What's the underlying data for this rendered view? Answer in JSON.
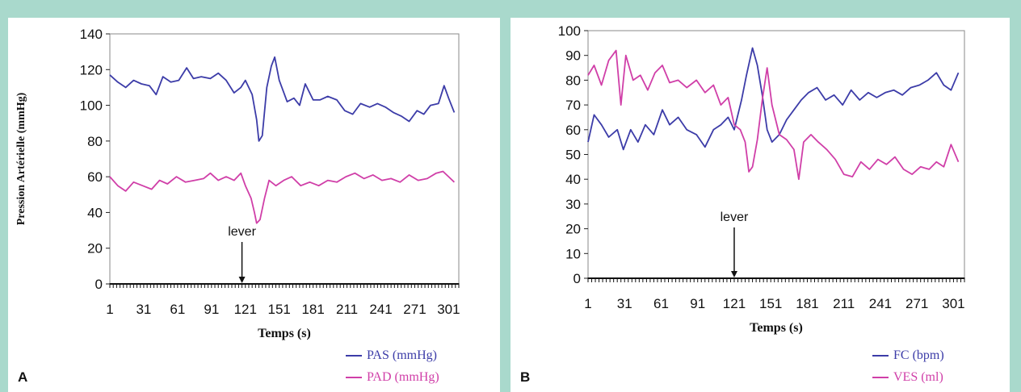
{
  "chart_data": [
    {
      "panel_label": "A",
      "type": "line",
      "xlabel": "Temps (s)",
      "ylabel": "Pression Artérielle (mmHg)",
      "xlim": [
        1,
        310
      ],
      "ylim": [
        0,
        140
      ],
      "x_ticks": [
        1,
        31,
        61,
        91,
        121,
        151,
        181,
        211,
        241,
        271,
        301
      ],
      "y_ticks": [
        0,
        20,
        40,
        60,
        80,
        100,
        120,
        140
      ],
      "grid": false,
      "legend_position": "bottom-right",
      "annotation": {
        "text": "lever",
        "x": 118
      },
      "series": [
        {
          "name": "PAS (mmHg)",
          "color": "#3c3ca8",
          "points": [
            [
              1,
              117
            ],
            [
              8,
              113
            ],
            [
              15,
              110
            ],
            [
              22,
              114
            ],
            [
              29,
              112
            ],
            [
              36,
              111
            ],
            [
              42,
              106
            ],
            [
              48,
              116
            ],
            [
              55,
              113
            ],
            [
              62,
              114
            ],
            [
              69,
              121
            ],
            [
              75,
              115
            ],
            [
              82,
              116
            ],
            [
              90,
              115
            ],
            [
              97,
              118
            ],
            [
              104,
              114
            ],
            [
              111,
              107
            ],
            [
              117,
              110
            ],
            [
              121,
              114
            ],
            [
              127,
              106
            ],
            [
              131,
              92
            ],
            [
              133,
              80
            ],
            [
              136,
              83
            ],
            [
              140,
              110
            ],
            [
              144,
              122
            ],
            [
              147,
              127
            ],
            [
              151,
              114
            ],
            [
              158,
              102
            ],
            [
              164,
              104
            ],
            [
              169,
              100
            ],
            [
              174,
              112
            ],
            [
              181,
              103
            ],
            [
              187,
              103
            ],
            [
              194,
              105
            ],
            [
              202,
              103
            ],
            [
              209,
              97
            ],
            [
              216,
              95
            ],
            [
              223,
              101
            ],
            [
              231,
              99
            ],
            [
              238,
              101
            ],
            [
              245,
              99
            ],
            [
              252,
              96
            ],
            [
              259,
              94
            ],
            [
              266,
              91
            ],
            [
              273,
              97
            ],
            [
              279,
              95
            ],
            [
              285,
              100
            ],
            [
              292,
              101
            ],
            [
              297,
              111
            ],
            [
              301,
              104
            ],
            [
              306,
              96
            ]
          ]
        },
        {
          "name": "PAD (mmHg)",
          "color": "#d03fa8",
          "points": [
            [
              1,
              60
            ],
            [
              8,
              55
            ],
            [
              15,
              52
            ],
            [
              22,
              57
            ],
            [
              30,
              55
            ],
            [
              38,
              53
            ],
            [
              45,
              58
            ],
            [
              52,
              56
            ],
            [
              60,
              60
            ],
            [
              68,
              57
            ],
            [
              76,
              58
            ],
            [
              84,
              59
            ],
            [
              90,
              62
            ],
            [
              97,
              58
            ],
            [
              104,
              60
            ],
            [
              111,
              58
            ],
            [
              117,
              62
            ],
            [
              121,
              55
            ],
            [
              126,
              48
            ],
            [
              129,
              40
            ],
            [
              131,
              34
            ],
            [
              134,
              36
            ],
            [
              138,
              48
            ],
            [
              142,
              58
            ],
            [
              148,
              55
            ],
            [
              155,
              58
            ],
            [
              162,
              60
            ],
            [
              170,
              55
            ],
            [
              178,
              57
            ],
            [
              186,
              55
            ],
            [
              194,
              58
            ],
            [
              202,
              57
            ],
            [
              210,
              60
            ],
            [
              218,
              62
            ],
            [
              226,
              59
            ],
            [
              234,
              61
            ],
            [
              242,
              58
            ],
            [
              250,
              59
            ],
            [
              258,
              57
            ],
            [
              266,
              61
            ],
            [
              274,
              58
            ],
            [
              282,
              59
            ],
            [
              290,
              62
            ],
            [
              296,
              63
            ],
            [
              301,
              60
            ],
            [
              306,
              57
            ]
          ]
        }
      ]
    },
    {
      "panel_label": "B",
      "type": "line",
      "xlabel": "Temps (s)",
      "ylabel": "",
      "xlim": [
        1,
        310
      ],
      "ylim": [
        0,
        100
      ],
      "x_ticks": [
        1,
        31,
        61,
        91,
        121,
        151,
        181,
        211,
        241,
        271,
        301
      ],
      "y_ticks": [
        0,
        10,
        20,
        30,
        40,
        50,
        60,
        70,
        80,
        90,
        100
      ],
      "grid": false,
      "legend_position": "bottom-right",
      "annotation": {
        "text": "lever",
        "x": 121
      },
      "series": [
        {
          "name": "FC (bpm)",
          "color": "#3c3ca8",
          "points": [
            [
              1,
              55
            ],
            [
              6,
              66
            ],
            [
              12,
              62
            ],
            [
              18,
              57
            ],
            [
              25,
              60
            ],
            [
              30,
              52
            ],
            [
              36,
              60
            ],
            [
              42,
              55
            ],
            [
              48,
              62
            ],
            [
              55,
              58
            ],
            [
              62,
              68
            ],
            [
              68,
              62
            ],
            [
              75,
              65
            ],
            [
              82,
              60
            ],
            [
              90,
              58
            ],
            [
              97,
              53
            ],
            [
              104,
              60
            ],
            [
              110,
              62
            ],
            [
              116,
              65
            ],
            [
              121,
              60
            ],
            [
              127,
              72
            ],
            [
              131,
              82
            ],
            [
              136,
              93
            ],
            [
              140,
              86
            ],
            [
              144,
              74
            ],
            [
              148,
              60
            ],
            [
              152,
              55
            ],
            [
              158,
              58
            ],
            [
              164,
              64
            ],
            [
              170,
              68
            ],
            [
              176,
              72
            ],
            [
              182,
              75
            ],
            [
              189,
              77
            ],
            [
              196,
              72
            ],
            [
              203,
              74
            ],
            [
              210,
              70
            ],
            [
              217,
              76
            ],
            [
              224,
              72
            ],
            [
              231,
              75
            ],
            [
              238,
              73
            ],
            [
              245,
              75
            ],
            [
              252,
              76
            ],
            [
              259,
              74
            ],
            [
              266,
              77
            ],
            [
              273,
              78
            ],
            [
              280,
              80
            ],
            [
              287,
              83
            ],
            [
              293,
              78
            ],
            [
              299,
              76
            ],
            [
              305,
              83
            ]
          ]
        },
        {
          "name": "VES (ml)",
          "color": "#d03fa8",
          "points": [
            [
              1,
              82
            ],
            [
              6,
              86
            ],
            [
              12,
              78
            ],
            [
              18,
              88
            ],
            [
              24,
              92
            ],
            [
              28,
              70
            ],
            [
              32,
              90
            ],
            [
              38,
              80
            ],
            [
              44,
              82
            ],
            [
              50,
              76
            ],
            [
              56,
              83
            ],
            [
              62,
              86
            ],
            [
              68,
              79
            ],
            [
              75,
              80
            ],
            [
              82,
              77
            ],
            [
              90,
              80
            ],
            [
              97,
              75
            ],
            [
              104,
              78
            ],
            [
              110,
              70
            ],
            [
              116,
              73
            ],
            [
              121,
              62
            ],
            [
              126,
              60
            ],
            [
              130,
              55
            ],
            [
              133,
              43
            ],
            [
              136,
              45
            ],
            [
              140,
              56
            ],
            [
              144,
              72
            ],
            [
              148,
              85
            ],
            [
              152,
              70
            ],
            [
              158,
              58
            ],
            [
              164,
              56
            ],
            [
              170,
              52
            ],
            [
              174,
              40
            ],
            [
              178,
              55
            ],
            [
              184,
              58
            ],
            [
              190,
              55
            ],
            [
              197,
              52
            ],
            [
              204,
              48
            ],
            [
              211,
              42
            ],
            [
              218,
              41
            ],
            [
              225,
              47
            ],
            [
              232,
              44
            ],
            [
              239,
              48
            ],
            [
              246,
              46
            ],
            [
              253,
              49
            ],
            [
              260,
              44
            ],
            [
              267,
              42
            ],
            [
              274,
              45
            ],
            [
              281,
              44
            ],
            [
              287,
              47
            ],
            [
              293,
              45
            ],
            [
              299,
              54
            ],
            [
              305,
              47
            ]
          ]
        }
      ]
    }
  ]
}
